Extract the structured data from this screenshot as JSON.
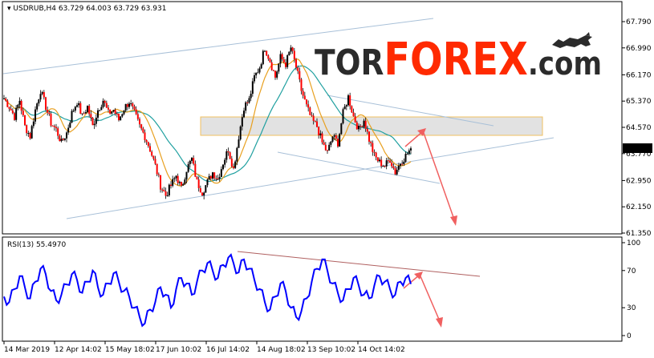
{
  "header": {
    "symbol": "USDRUB,H4",
    "ohlc": "63.729 64.003 63.729 63.931"
  },
  "logo": {
    "part1": "TOR",
    "part2": "FOREX",
    "part3": ".com",
    "colors": {
      "tor": "#2b2b2b",
      "forex": "#ff2a00",
      "com": "#2b2b2b"
    }
  },
  "rsi_header": {
    "label": "RSI(13) 55.4970"
  },
  "colors": {
    "candle": "#000000",
    "candle_bear_fill": "#ff0000",
    "ma_orange": "#e8a020",
    "ma_teal": "#20a0a0",
    "channel": "#a8c0d8",
    "zone_fill": "#d8d8d8",
    "zone_border": "#f0c060",
    "arrow": "#f06060",
    "rsi_line": "#0000ff",
    "rsi_trend": "#b06060",
    "price_tag_bg": "#000000",
    "price_tag_text": "#ffffff"
  },
  "chart_data": [
    {
      "type": "line",
      "title": "USDRUB,H4 63.729 64.003 63.729 63.931",
      "y_ticks": [
        "67.790",
        "66.990",
        "66.170",
        "65.370",
        "64.570",
        "63.770",
        "62.950",
        "62.150",
        "61.350"
      ],
      "ylim": [
        61.35,
        67.79
      ],
      "current_price": "63.931",
      "x_tick_labels": [
        "14 Mar 2019",
        "12 Apr 14:02",
        "15 May 18:02",
        "17 Jun 10:02",
        "16 Jul 14:02",
        "14 Aug 18:02",
        "13 Sep 10:02",
        "14 Oct 14:02"
      ],
      "series": [
        {
          "values": [
            65.45,
            65.2,
            64.9,
            65.4,
            64.6,
            64.3,
            65.1,
            65.7,
            65.2,
            64.7,
            64.5,
            64.1,
            64.4,
            65.0,
            65.35,
            64.9,
            65.2,
            64.6,
            65.1,
            65.4,
            65.0,
            65.1,
            64.8,
            65.15,
            65.35,
            65.0,
            64.6,
            64.3,
            63.9,
            63.4,
            62.8,
            62.5,
            62.8,
            63.1,
            62.7,
            63.3,
            63.6,
            62.9,
            62.6,
            62.9,
            63.2,
            63.0,
            63.5,
            63.9,
            63.3,
            64.3,
            65.2,
            65.4,
            66.1,
            66.4,
            67.0,
            66.6,
            66.1,
            66.7,
            66.5,
            67.0,
            66.4,
            65.7,
            65.2,
            64.8,
            64.6,
            64.1,
            63.8,
            64.3,
            64.1,
            65.0,
            65.5,
            64.9,
            64.5,
            64.8,
            64.2,
            63.7,
            63.5,
            63.4,
            63.6,
            63.2,
            63.5,
            63.7,
            63.93
          ]
        }
      ]
    },
    {
      "type": "line",
      "title": "RSI(13) 55.4970",
      "y_ticks": [
        "100",
        "70",
        "30",
        "0"
      ],
      "ylim": [
        0,
        100
      ],
      "series": [
        {
          "values": [
            42,
            36,
            50,
            64,
            52,
            40,
            58,
            72,
            66,
            48,
            38,
            44,
            55,
            66,
            60,
            46,
            58,
            70,
            52,
            44,
            56,
            67,
            58,
            48,
            42,
            30,
            20,
            13,
            28,
            36,
            52,
            44,
            30,
            50,
            62,
            56,
            44,
            58,
            70,
            78,
            70,
            62,
            76,
            84,
            78,
            68,
            82,
            72,
            60,
            50,
            36,
            28,
            42,
            56,
            48,
            30,
            20,
            26,
            40,
            58,
            72,
            82,
            70,
            56,
            46,
            38,
            50,
            62,
            54,
            44,
            40,
            54,
            64,
            58,
            50,
            44,
            58,
            62,
            55.5
          ]
        }
      ]
    }
  ]
}
